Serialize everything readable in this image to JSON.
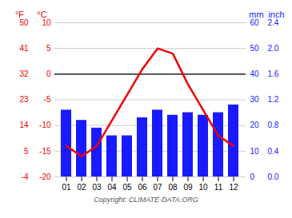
{
  "chart_data": {
    "type": "bar",
    "categories": [
      "01",
      "02",
      "03",
      "04",
      "05",
      "06",
      "07",
      "08",
      "09",
      "10",
      "11",
      "12"
    ],
    "series": [
      {
        "type": "bar",
        "axis": "y2",
        "color": "#1a1aff",
        "values": [
          26,
          22,
          19,
          16,
          16,
          23,
          26,
          24,
          25,
          24,
          25,
          28
        ]
      },
      {
        "type": "line",
        "axis": "y",
        "color": "#ee0000",
        "values": [
          -14,
          -16,
          -14,
          -9,
          -4,
          1,
          5,
          4,
          -2,
          -7,
          -12,
          -14
        ]
      }
    ],
    "ylim": [
      -20,
      10
    ],
    "yticks": [
      -20,
      -15,
      -10,
      -5,
      0,
      5,
      10
    ],
    "ylabel": "°C",
    "yticks_outer": [
      {
        "value": -20,
        "label": "-4"
      },
      {
        "value": -15,
        "label": "5"
      },
      {
        "value": -10,
        "label": "14"
      },
      {
        "value": -5,
        "label": "23"
      },
      {
        "value": 0,
        "label": "32"
      },
      {
        "value": 5,
        "label": "41"
      },
      {
        "value": 10,
        "label": "50"
      }
    ],
    "ylabel_outer": "°F",
    "y2lim": [
      0,
      60
    ],
    "y2ticks": [
      0,
      10,
      20,
      30,
      40,
      50,
      60
    ],
    "y2label": "mm",
    "y2ticks_outer": [
      {
        "value": 0,
        "label": "0.0"
      },
      {
        "value": 10,
        "label": "0.4"
      },
      {
        "value": 20,
        "label": "0.8"
      },
      {
        "value": 30,
        "label": "1.2"
      },
      {
        "value": 40,
        "label": "1.6"
      },
      {
        "value": 50,
        "label": "2.0"
      },
      {
        "value": 60,
        "label": "2.4"
      }
    ],
    "y2label_outer": "inch",
    "reference_lines": [
      0
    ],
    "caption": "Copyright: CLIMATE-DATA.ORG",
    "grid": true
  }
}
